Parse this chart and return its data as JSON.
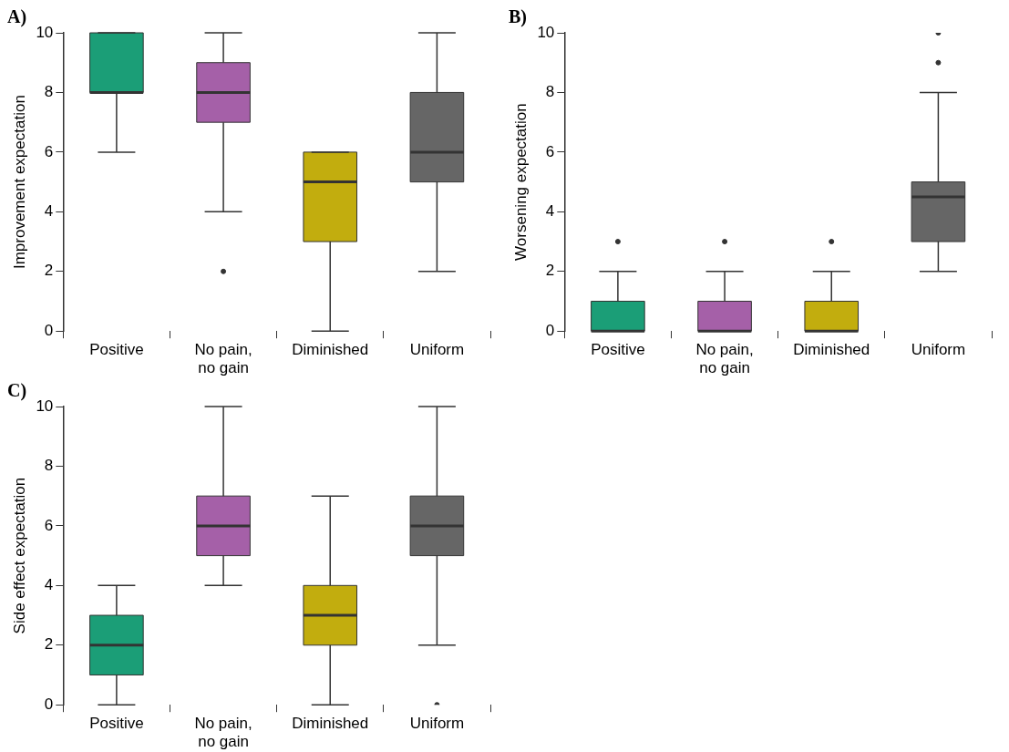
{
  "chart_data": [
    {
      "type": "box",
      "title": "A)",
      "ylabel": "Improvement expectation",
      "categories": [
        "Positive",
        "No pain,\nno gain",
        "Diminished",
        "Uniform"
      ],
      "colors": [
        "#1b9e77",
        "#a560a8",
        "#c2ad0e",
        "#666666"
      ],
      "ylim": [
        0,
        10
      ],
      "yticks": [
        0,
        2,
        4,
        6,
        8,
        10
      ],
      "grid": false,
      "boxes": [
        {
          "low": 6,
          "q1": 8,
          "median": 8,
          "q3": 10,
          "high": 10
        },
        {
          "low": 4,
          "q1": 7,
          "median": 8,
          "q3": 9,
          "high": 10,
          "outliers": [
            2
          ]
        },
        {
          "low": 0,
          "q1": 3,
          "median": 5,
          "q3": 6,
          "high": 6
        },
        {
          "low": 2,
          "q1": 5,
          "median": 6,
          "q3": 8,
          "high": 10
        }
      ]
    },
    {
      "type": "box",
      "title": "B)",
      "ylabel": "Worsening expectation",
      "categories": [
        "Positive",
        "No pain,\nno gain",
        "Diminished",
        "Uniform"
      ],
      "colors": [
        "#1b9e77",
        "#a560a8",
        "#c2ad0e",
        "#666666"
      ],
      "ylim": [
        0,
        10
      ],
      "yticks": [
        0,
        2,
        4,
        6,
        8,
        10
      ],
      "grid": false,
      "boxes": [
        {
          "low": 0,
          "q1": 0,
          "median": 0,
          "q3": 1,
          "high": 2,
          "outliers": [
            3
          ]
        },
        {
          "low": 0,
          "q1": 0,
          "median": 0,
          "q3": 1,
          "high": 2,
          "outliers": [
            3
          ]
        },
        {
          "low": 0,
          "q1": 0,
          "median": 0,
          "q3": 1,
          "high": 2,
          "outliers": [
            3
          ]
        },
        {
          "low": 2,
          "q1": 3,
          "median": 4.5,
          "q3": 5,
          "high": 8,
          "outliers": [
            9,
            10
          ]
        }
      ]
    },
    {
      "type": "box",
      "title": "C)",
      "ylabel": "Side effect expectation",
      "categories": [
        "Positive",
        "No pain,\nno gain",
        "Diminished",
        "Uniform"
      ],
      "colors": [
        "#1b9e77",
        "#a560a8",
        "#c2ad0e",
        "#666666"
      ],
      "ylim": [
        0,
        10
      ],
      "yticks": [
        0,
        2,
        4,
        6,
        8,
        10
      ],
      "grid": false,
      "boxes": [
        {
          "low": 0,
          "q1": 1,
          "median": 2,
          "q3": 3,
          "high": 4
        },
        {
          "low": 4,
          "q1": 5,
          "median": 6,
          "q3": 7,
          "high": 10
        },
        {
          "low": 0,
          "q1": 2,
          "median": 3,
          "q3": 4,
          "high": 7
        },
        {
          "low": 2,
          "q1": 5,
          "median": 6,
          "q3": 7,
          "high": 10,
          "outliers": [
            0
          ]
        }
      ]
    }
  ]
}
